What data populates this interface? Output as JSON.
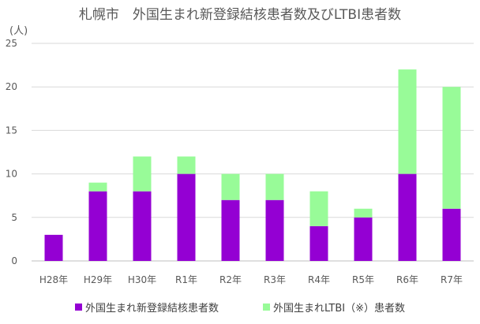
{
  "chart_data": {
    "type": "bar",
    "stacked": true,
    "title": "札幌市　外国生まれ新登録結核患者数及びLTBI患者数",
    "ylabel": "(人)",
    "xlabel": "",
    "ylim": [
      0,
      25
    ],
    "yticks": [
      0,
      5,
      10,
      15,
      20,
      25
    ],
    "grid": true,
    "legend_position": "bottom",
    "categories": [
      "H28年",
      "H29年",
      "H30年",
      "R1年",
      "R2年",
      "R3年",
      "R4年",
      "R5年",
      "R6年",
      "R7年"
    ],
    "series": [
      {
        "name": "外国生まれ新登録結核患者数",
        "color": "#9400D3",
        "values": [
          3,
          8,
          8,
          10,
          7,
          7,
          4,
          5,
          10,
          6
        ]
      },
      {
        "name": "外国生まれLTBI（※）患者数",
        "color": "#98FB98",
        "values": [
          0,
          1,
          4,
          2,
          3,
          3,
          4,
          1,
          12,
          14
        ]
      }
    ]
  }
}
